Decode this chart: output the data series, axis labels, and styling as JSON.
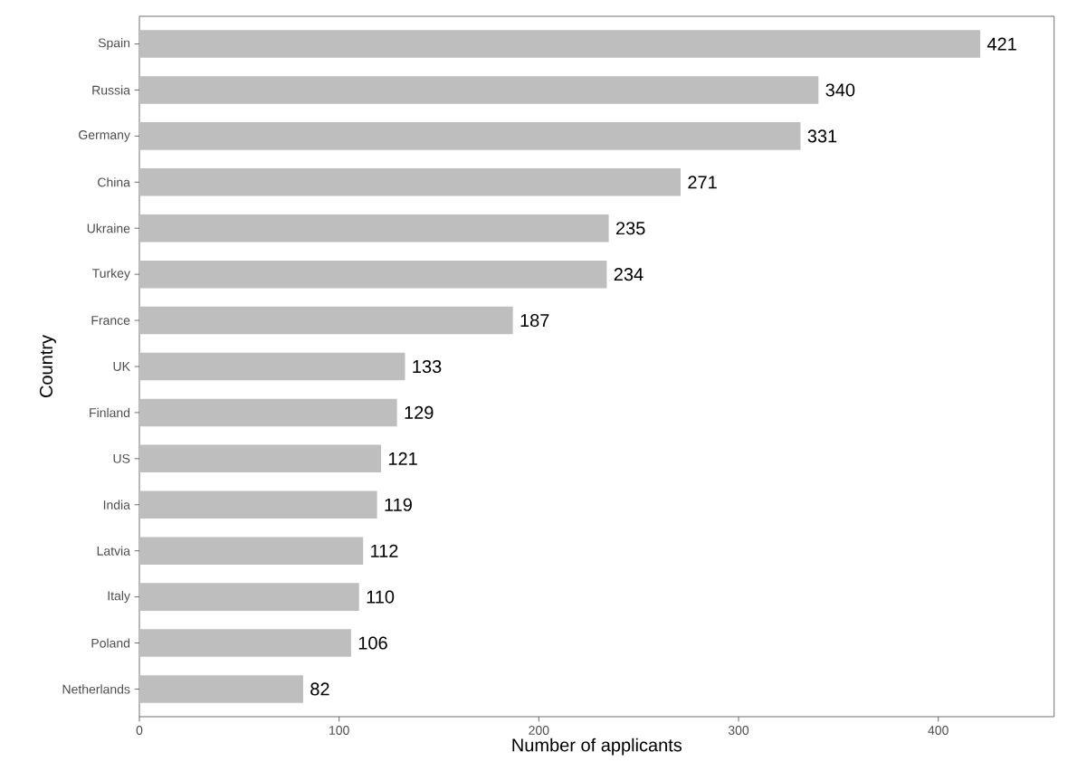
{
  "chart_data": {
    "type": "bar",
    "orientation": "horizontal",
    "xlabel": "Number of applicants",
    "ylabel": "Country",
    "categories": [
      "Spain",
      "Russia",
      "Germany",
      "China",
      "Ukraine",
      "Turkey",
      "France",
      "UK",
      "Finland",
      "US",
      "India",
      "Latvia",
      "Italy",
      "Poland",
      "Netherlands"
    ],
    "values": [
      421,
      340,
      331,
      271,
      235,
      234,
      187,
      133,
      129,
      121,
      119,
      112,
      110,
      106,
      82
    ],
    "color": "#bebebe",
    "xlim": [
      0,
      458
    ],
    "xticks": [
      0,
      100,
      200,
      300,
      400
    ],
    "data_labels": true,
    "grid": false
  }
}
